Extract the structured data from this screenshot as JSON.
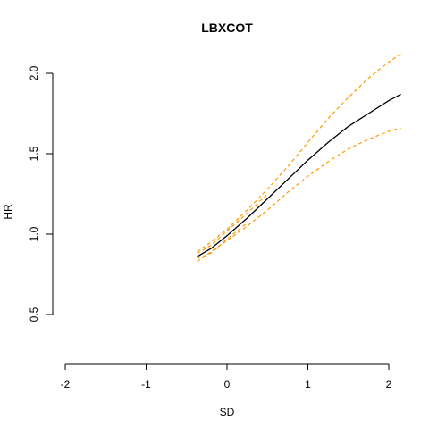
{
  "chart_data": {
    "type": "line",
    "title": "LBXCOT",
    "xlabel": "SD",
    "ylabel": "HR",
    "xlim": [
      -2,
      2.15
    ],
    "ylim": [
      0.25,
      2.15
    ],
    "x_ticks": [
      -2,
      -1,
      0,
      1,
      2
    ],
    "y_ticks": [
      0.5,
      1.0,
      1.5,
      2.0
    ],
    "x_tick_labels": [
      "-2",
      "-1",
      "0",
      "1",
      "2"
    ],
    "y_tick_labels": [
      "0.5",
      "1.0",
      "1.5",
      "2.0"
    ],
    "grid": false,
    "series": [
      {
        "role": "estimate",
        "color": "#000000",
        "dash": "solid",
        "x": [
          -0.37,
          -0.2,
          0.0,
          0.25,
          0.5,
          0.75,
          1.0,
          1.25,
          1.5,
          1.75,
          2.0,
          2.15
        ],
        "y": [
          0.86,
          0.91,
          0.99,
          1.1,
          1.22,
          1.34,
          1.46,
          1.57,
          1.67,
          1.75,
          1.83,
          1.87
        ]
      },
      {
        "role": "upper",
        "color": "#FF9900",
        "dash": "dashed",
        "x": [
          -0.37,
          -0.2,
          0.0,
          0.25,
          0.5,
          0.75,
          1.0,
          1.25,
          1.5,
          1.75,
          2.0,
          2.15
        ],
        "y": [
          0.89,
          0.95,
          1.03,
          1.15,
          1.28,
          1.42,
          1.57,
          1.72,
          1.85,
          1.97,
          2.07,
          2.12
        ]
      },
      {
        "role": "lower",
        "color": "#FF9900",
        "dash": "dashed",
        "x": [
          -0.37,
          -0.2,
          0.0,
          0.25,
          0.5,
          0.75,
          1.0,
          1.25,
          1.5,
          1.75,
          2.0,
          2.15
        ],
        "y": [
          0.83,
          0.89,
          0.96,
          1.05,
          1.15,
          1.26,
          1.36,
          1.45,
          1.53,
          1.59,
          1.64,
          1.66
        ]
      },
      {
        "role": "upper-2",
        "color": "#FF9900",
        "dash": "dashed",
        "x": [
          -0.37,
          -0.2,
          0.0,
          0.25,
          0.5
        ],
        "y": [
          0.88,
          0.93,
          1.02,
          1.13,
          1.25
        ]
      },
      {
        "role": "lower-2",
        "color": "#FF9900",
        "dash": "dashed",
        "x": [
          -0.37,
          -0.2,
          0.0,
          0.25
        ],
        "y": [
          0.85,
          0.88,
          0.97,
          1.07
        ]
      }
    ]
  }
}
